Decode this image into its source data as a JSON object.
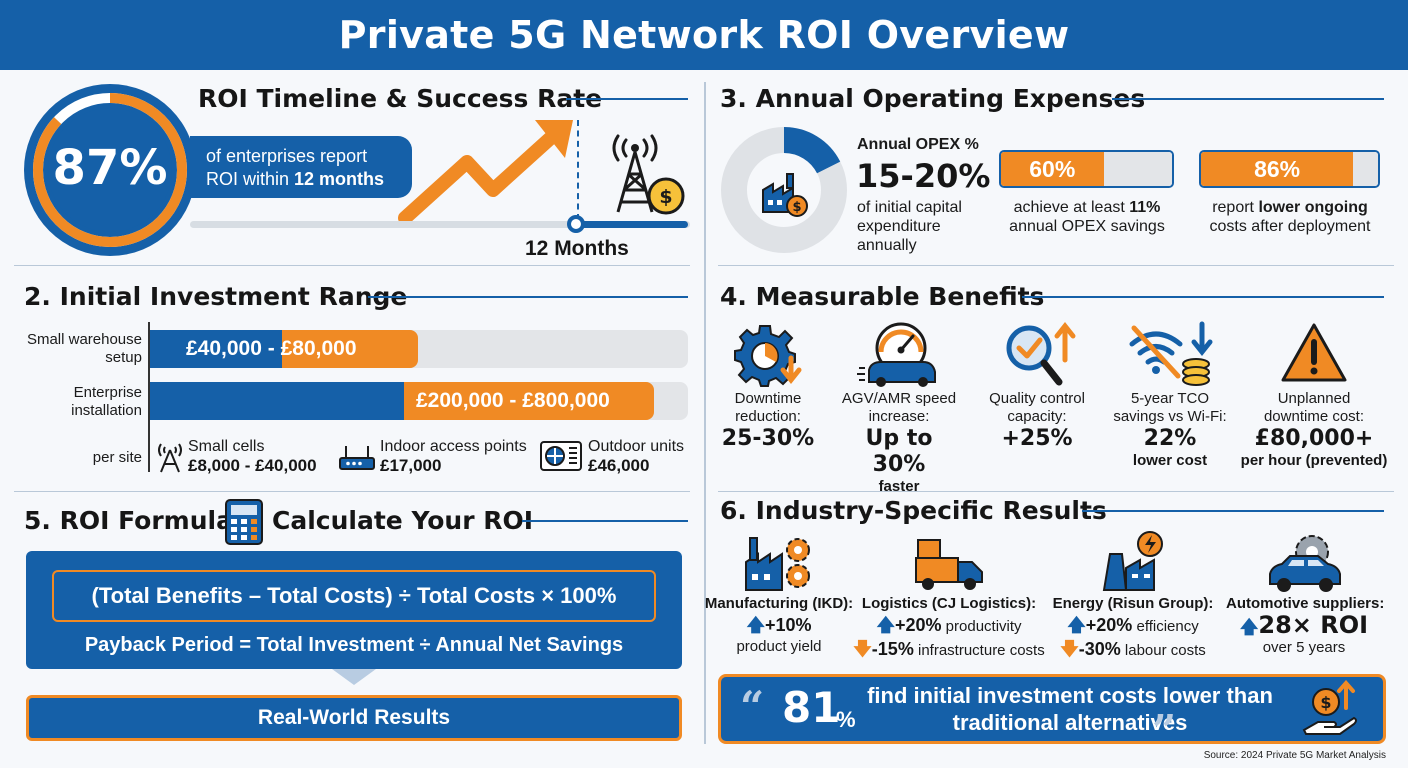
{
  "title": "Private 5G Network ROI Overview",
  "sec1": {
    "title": "ROI Timeline & Success Rate",
    "pct": "87%",
    "pill_line1": "of enterprises report",
    "pill_line2_prefix": "ROI within ",
    "pill_line2_bold": "12 months",
    "timeline_label": "12 Months"
  },
  "sec2": {
    "title": "2. Initial Investment Range",
    "rows": [
      {
        "label": "Small warehouse setup",
        "low": "£40,000",
        "sep": " - ",
        "high": "£80,000"
      },
      {
        "label": "Enterprise installation",
        "range": "£200,000 - £800,000"
      }
    ],
    "per_site_label": "per site",
    "per_site_items": [
      {
        "name": "Small cells",
        "price": "£8,000 - £40,000",
        "icon": "cell-tower-icon"
      },
      {
        "name": "Indoor access points",
        "price": "£17,000",
        "icon": "router-icon"
      },
      {
        "name": "Outdoor units",
        "price": "£46,000",
        "icon": "outdoor-unit-icon"
      }
    ]
  },
  "sec5": {
    "title_left": "5. ROI Formula:",
    "title_right": "Calculate Your ROI",
    "formula": "(Total Benefits – Total Costs) ÷ Total Costs × 100%",
    "payback": "Payback Period = Total Investment ÷ Annual Net Savings",
    "real_world": "Real-World Results"
  },
  "sec3": {
    "title": "3. Annual Operating Expenses",
    "opex_label": "Annual OPEX %",
    "opex_value": "15-20%",
    "opex_desc": "of initial capital expenditure annually",
    "bars": [
      {
        "pct": "60%",
        "fill": 0.6,
        "cap_pre": "achieve at least ",
        "cap_bold": "11%",
        "cap_post": "annual OPEX savings"
      },
      {
        "pct": "86%",
        "fill": 0.86,
        "cap_pre": "report ",
        "cap_bold": "lower ongoing",
        "cap_post": "costs after deployment"
      }
    ]
  },
  "sec4": {
    "title": "4. Measurable Benefits",
    "items": [
      {
        "label1": "Downtime",
        "label2": "reduction:",
        "value": "25-30%",
        "sub": "",
        "icon": "gear-down-icon"
      },
      {
        "label1": "AGV/AMR speed",
        "label2": "increase:",
        "value": "Up to 30%",
        "sub": "faster",
        "icon": "speedometer-icon"
      },
      {
        "label1": "Quality control",
        "label2": "capacity:",
        "value": "+25%",
        "sub": "",
        "icon": "magnifier-check-icon"
      },
      {
        "label1": "5-year TCO",
        "label2": "savings vs Wi-Fi:",
        "value": "22%",
        "sub": "lower cost",
        "icon": "wifi-coins-icon"
      },
      {
        "label1": "Unplanned",
        "label2": "downtime cost:",
        "value": "£80,000+",
        "sub": "per hour (prevented)",
        "icon": "warning-icon"
      }
    ]
  },
  "sec6": {
    "title": "6. Industry-Specific Results",
    "items": [
      {
        "name": "Manufacturing (IKD):",
        "l1_val": "+10%",
        "l1_txt": "",
        "l2_txt": "product yield",
        "icon": "factory-gears-icon"
      },
      {
        "name": "Logistics (CJ Logistics):",
        "l1_val": "+20%",
        "l1_txt": " productivity",
        "l2_val": "-15%",
        "l2_txt": " infrastructure costs",
        "icon": "truck-icon"
      },
      {
        "name": "Energy (Risun Group):",
        "l1_val": "+20%",
        "l1_txt": " efficiency",
        "l2_val": "-30%",
        "l2_txt": " labour costs",
        "icon": "power-plant-icon"
      },
      {
        "name": "Automotive suppliers:",
        "l1_val": "28× ROI",
        "l2_txt": "over 5 years",
        "icon": "car-gear-icon"
      }
    ],
    "quote_num": "81",
    "quote_pct": "%",
    "quote_text": "find initial investment costs lower than traditional alternatives",
    "source": "Source: 2024 Private 5G Market Analysis"
  },
  "colors": {
    "primary": "#1560a8",
    "accent": "#f08a24",
    "track": "#e3e5e8"
  }
}
